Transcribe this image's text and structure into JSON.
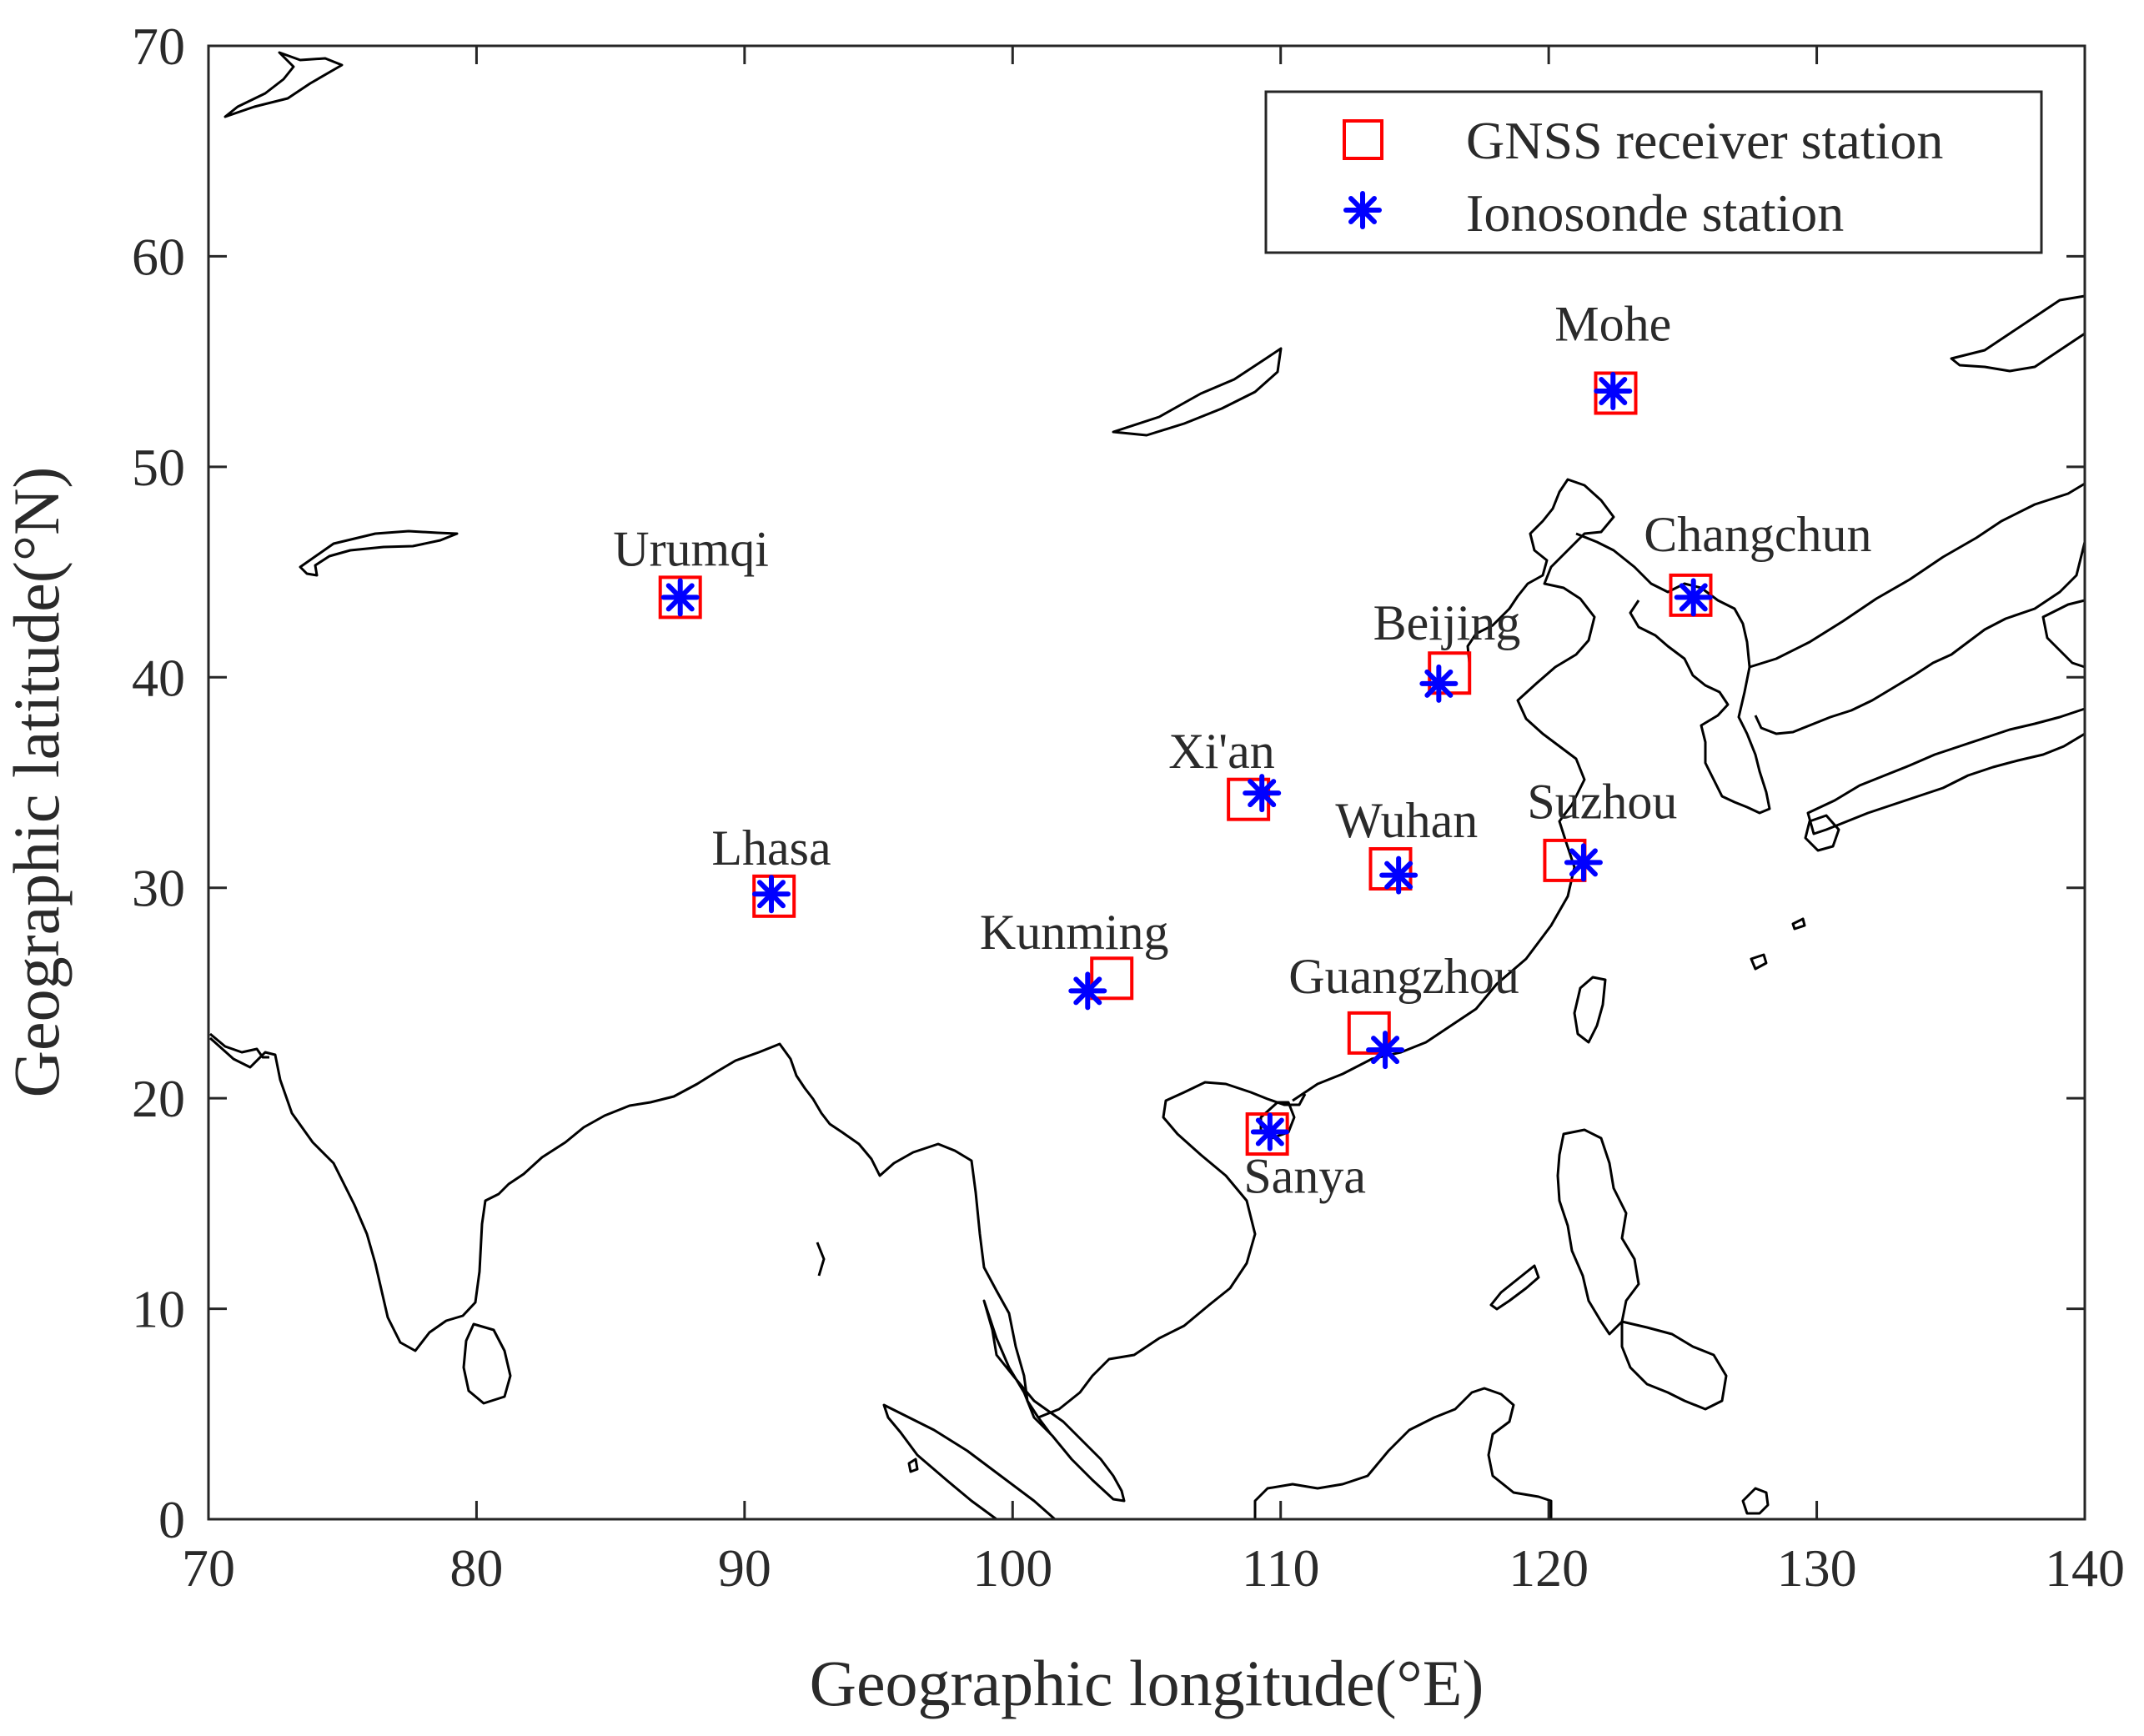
{
  "chart_data": {
    "type": "scatter",
    "xlabel": "Geographic longitude(°E)",
    "ylabel": "Geographic latitude(°N)",
    "xlim": [
      70,
      140
    ],
    "ylim": [
      0,
      70
    ],
    "x_ticks": [
      70,
      80,
      90,
      100,
      110,
      120,
      130,
      140
    ],
    "y_ticks": [
      0,
      10,
      20,
      30,
      40,
      50,
      60,
      70
    ],
    "grid": false,
    "legend_position": "top-right",
    "legend": [
      {
        "label": "GNSS receiver station",
        "marker": "square",
        "color": "#ff0000"
      },
      {
        "label": "Ionosonde station",
        "marker": "asterisk",
        "color": "#0000ff"
      }
    ],
    "series": [
      {
        "name": "GNSS receiver station",
        "marker": "square",
        "color": "#ff0000",
        "points": [
          {
            "label": "Urumqi",
            "x": 87.6,
            "y": 43.8
          },
          {
            "label": "Lhasa",
            "x": 91.1,
            "y": 29.6
          },
          {
            "label": "Kunming",
            "x": 103.7,
            "y": 25.7
          },
          {
            "label": "Xi'an",
            "x": 108.8,
            "y": 34.2
          },
          {
            "label": "Wuhan",
            "x": 114.1,
            "y": 30.9
          },
          {
            "label": "Beijing",
            "x": 116.3,
            "y": 40.2
          },
          {
            "label": "Suzhou",
            "x": 120.6,
            "y": 31.3
          },
          {
            "label": "Guangzhou",
            "x": 113.3,
            "y": 23.1
          },
          {
            "label": "Sanya",
            "x": 109.5,
            "y": 18.3
          },
          {
            "label": "Mohe",
            "x": 122.5,
            "y": 53.5
          },
          {
            "label": "Changchun",
            "x": 125.3,
            "y": 43.9
          }
        ]
      },
      {
        "name": "Ionosonde station",
        "marker": "asterisk",
        "color": "#0000ff",
        "points": [
          {
            "label": "Urumqi",
            "x": 87.6,
            "y": 43.8
          },
          {
            "label": "Lhasa",
            "x": 91.0,
            "y": 29.7
          },
          {
            "label": "Kunming",
            "x": 102.8,
            "y": 25.1
          },
          {
            "label": "Xi'an",
            "x": 109.3,
            "y": 34.5
          },
          {
            "label": "Wuhan",
            "x": 114.4,
            "y": 30.6
          },
          {
            "label": "Beijing",
            "x": 115.9,
            "y": 39.7
          },
          {
            "label": "Suzhou",
            "x": 121.3,
            "y": 31.2
          },
          {
            "label": "Guangzhou",
            "x": 113.9,
            "y": 22.3
          },
          {
            "label": "Sanya",
            "x": 109.6,
            "y": 18.4
          },
          {
            "label": "Mohe",
            "x": 122.4,
            "y": 53.6
          },
          {
            "label": "Changchun",
            "x": 125.4,
            "y": 43.8
          }
        ]
      }
    ],
    "station_labels": [
      {
        "text": "Urumqi",
        "x": 88.0,
        "y": 45.3
      },
      {
        "text": "Lhasa",
        "x": 91.0,
        "y": 31.1
      },
      {
        "text": "Kunming",
        "x": 102.3,
        "y": 27.1
      },
      {
        "text": "Xi'an",
        "x": 107.8,
        "y": 35.7
      },
      {
        "text": "Wuhan",
        "x": 114.7,
        "y": 32.4
      },
      {
        "text": "Beijing",
        "x": 116.2,
        "y": 41.8
      },
      {
        "text": "Suzhou",
        "x": 122.0,
        "y": 33.3
      },
      {
        "text": "Guangzhou",
        "x": 114.6,
        "y": 25.0
      },
      {
        "text": "Sanya",
        "x": 110.9,
        "y": 15.5
      },
      {
        "text": "Mohe",
        "x": 122.4,
        "y": 56.0
      },
      {
        "text": "Changchun",
        "x": 127.8,
        "y": 46.0
      }
    ],
    "coastline_color": "#000000"
  }
}
